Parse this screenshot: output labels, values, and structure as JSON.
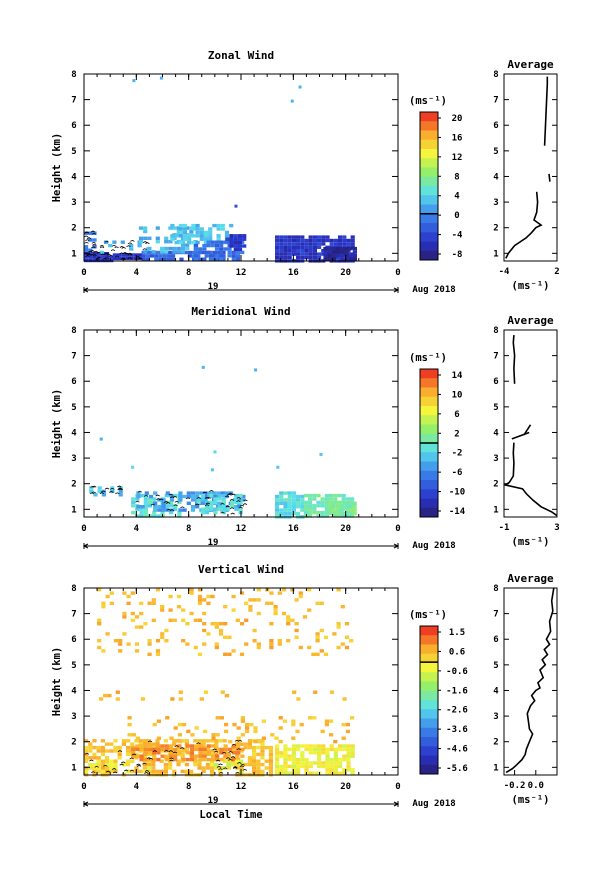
{
  "chart_data": [
    {
      "type": "heatmap",
      "title": "Zonal Wind",
      "xlabel": "",
      "ylabel": "Height (km)",
      "xlim": [
        0,
        24
      ],
      "ylim": [
        0.7,
        8
      ],
      "xticks": [
        "0",
        "4",
        "8",
        "12",
        "16",
        "20",
        "0"
      ],
      "yticks": [
        "1",
        "2",
        "3",
        "4",
        "5",
        "6",
        "7",
        "8"
      ],
      "date_bar": {
        "label": "19",
        "right_label": "Aug 2018"
      },
      "colorbar": {
        "unit": "(ms⁻¹)",
        "ticks": [
          "20",
          "16",
          "12",
          "8",
          "4",
          "0",
          "-4",
          "-8"
        ],
        "range": [
          -10,
          22
        ]
      },
      "blocks": [
        {
          "x0": 0,
          "x1": 2.2,
          "y0": 0.75,
          "y1": 1.05,
          "value": -6.5,
          "density": 0.97
        },
        {
          "x0": 2.2,
          "x1": 4.4,
          "y0": 0.75,
          "y1": 1.0,
          "value": -6.5,
          "density": 0.96
        },
        {
          "x0": 0,
          "x1": 0.8,
          "y0": 1.0,
          "y1": 1.85,
          "value": -1,
          "density": 0.55
        },
        {
          "x0": 1.2,
          "x1": 4.8,
          "y0": 1.05,
          "y1": 1.5,
          "value": 2,
          "density": 0.3
        },
        {
          "x0": 4.4,
          "x1": 10.8,
          "y0": 0.75,
          "y1": 1.1,
          "value": -2.5,
          "density": 0.85
        },
        {
          "x0": 4.2,
          "x1": 8.6,
          "y0": 1.1,
          "y1": 2.05,
          "value": 2.5,
          "density": 0.45
        },
        {
          "x0": 6.6,
          "x1": 11.2,
          "y0": 1.35,
          "y1": 2.15,
          "value": 3,
          "density": 0.55
        },
        {
          "x0": 8.4,
          "x1": 12.2,
          "y0": 0.8,
          "y1": 1.5,
          "value": -2,
          "density": 0.7
        },
        {
          "x0": 10.8,
          "x1": 12.3,
          "y0": 1.1,
          "y1": 1.75,
          "value": -6,
          "density": 0.6
        },
        {
          "x0": 14.6,
          "x1": 20.6,
          "y0": 0.75,
          "y1": 1.7,
          "value": -6,
          "density": 0.92
        },
        {
          "x0": 18.3,
          "x1": 20.6,
          "y0": 0.75,
          "y1": 1.25,
          "value": -8,
          "density": 0.95
        }
      ],
      "points": [
        {
          "x": 3.7,
          "y": 7.8,
          "value": 2
        },
        {
          "x": 5.8,
          "y": 7.9,
          "value": 2
        },
        {
          "x": 15.8,
          "y": 7.0,
          "value": 2
        },
        {
          "x": 16.4,
          "y": 7.55,
          "value": 2
        },
        {
          "x": 11.5,
          "y": 2.9,
          "value": -4
        }
      ]
    },
    {
      "type": "line",
      "title": "Average",
      "xlabel": "(ms⁻¹)",
      "xlim": [
        -4,
        2
      ],
      "ylim": [
        0.7,
        8
      ],
      "xticks": [
        "-4",
        "2"
      ],
      "yticks": [
        "1",
        "2",
        "3",
        "4",
        "5",
        "6",
        "7",
        "8"
      ],
      "profile": [
        {
          "x": -3.8,
          "y": 0.8
        },
        {
          "x": -3.5,
          "y": 1.0
        },
        {
          "x": -2.8,
          "y": 1.3
        },
        {
          "x": -1.5,
          "y": 1.6
        },
        {
          "x": -0.9,
          "y": 1.8
        },
        {
          "x": -0.4,
          "y": 2.0
        },
        {
          "x": 0.2,
          "y": 2.1
        },
        {
          "x": -0.6,
          "y": 2.3
        },
        {
          "x": -0.3,
          "y": 2.6
        },
        {
          "x": -0.2,
          "y": 3.0
        },
        {
          "x": -0.3,
          "y": 3.4
        }
      ],
      "profile_segments": [
        [
          {
            "x": 1.2,
            "y": 3.8
          },
          {
            "x": 1.1,
            "y": 4.1
          }
        ],
        [
          {
            "x": 0.6,
            "y": 5.2
          },
          {
            "x": 0.7,
            "y": 6.0
          },
          {
            "x": 0.8,
            "y": 6.8
          },
          {
            "x": 0.9,
            "y": 7.6
          },
          {
            "x": 0.9,
            "y": 7.9
          }
        ]
      ]
    },
    {
      "type": "heatmap",
      "title": "Meridional Wind",
      "xlabel": "",
      "ylabel": "Height (km)",
      "xlim": [
        0,
        24
      ],
      "ylim": [
        0.7,
        8
      ],
      "xticks": [
        "0",
        "4",
        "8",
        "12",
        "16",
        "20",
        "0"
      ],
      "yticks": [
        "1",
        "2",
        "3",
        "4",
        "5",
        "6",
        "7",
        "8"
      ],
      "date_bar": {
        "label": "19",
        "right_label": "Aug 2018"
      },
      "colorbar": {
        "unit": "(ms⁻¹)",
        "ticks": [
          "14",
          "10",
          "6",
          "2",
          "-2",
          "-6",
          "-10",
          "-14"
        ],
        "range": [
          -16,
          16
        ]
      },
      "blocks": [
        {
          "x0": 0.4,
          "x1": 3.0,
          "y0": 1.6,
          "y1": 1.9,
          "value": -3,
          "density": 0.55
        },
        {
          "x0": 3.6,
          "x1": 7.4,
          "y0": 0.75,
          "y1": 1.6,
          "value": -1,
          "density": 0.6
        },
        {
          "x0": 4.0,
          "x1": 12.2,
          "y0": 1.0,
          "y1": 1.7,
          "value": -5,
          "density": 0.5
        },
        {
          "x0": 8.6,
          "x1": 12.0,
          "y0": 0.8,
          "y1": 1.6,
          "value": -1.5,
          "density": 0.55
        },
        {
          "x0": 14.6,
          "x1": 16.8,
          "y0": 0.75,
          "y1": 1.7,
          "value": -1.5,
          "density": 0.85
        },
        {
          "x0": 16.8,
          "x1": 20.6,
          "y0": 0.75,
          "y1": 1.6,
          "value": 0.5,
          "density": 0.85
        },
        {
          "x0": 18.6,
          "x1": 20.6,
          "y0": 0.75,
          "y1": 1.3,
          "value": 1.5,
          "density": 0.9
        }
      ],
      "points": [
        {
          "x": 1.2,
          "y": 3.8,
          "value": -4
        },
        {
          "x": 3.6,
          "y": 2.7,
          "value": -2
        },
        {
          "x": 9.7,
          "y": 2.6,
          "value": -3
        },
        {
          "x": 9.9,
          "y": 3.3,
          "value": -2
        },
        {
          "x": 14.7,
          "y": 2.7,
          "value": -3
        },
        {
          "x": 18.0,
          "y": 3.2,
          "value": -3
        },
        {
          "x": 9.0,
          "y": 6.6,
          "value": -4
        },
        {
          "x": 13.0,
          "y": 6.5,
          "value": -4
        }
      ]
    },
    {
      "type": "line",
      "title": "Average",
      "xlabel": "(ms⁻¹)",
      "xlim": [
        -1,
        3
      ],
      "ylim": [
        0.7,
        8
      ],
      "xticks": [
        "-1",
        "3"
      ],
      "yticks": [
        "1",
        "2",
        "3",
        "4",
        "5",
        "6",
        "7",
        "8"
      ],
      "profile": [
        {
          "x": 3.0,
          "y": 0.75
        },
        {
          "x": 2.6,
          "y": 0.9
        },
        {
          "x": 1.8,
          "y": 1.1
        },
        {
          "x": 1.2,
          "y": 1.35
        },
        {
          "x": 0.7,
          "y": 1.6
        },
        {
          "x": 0.4,
          "y": 1.8
        },
        {
          "x": -0.9,
          "y": 1.95
        },
        {
          "x": -0.6,
          "y": 2.05
        },
        {
          "x": -0.3,
          "y": 2.3
        },
        {
          "x": -0.25,
          "y": 2.8
        },
        {
          "x": -0.3,
          "y": 3.2
        },
        {
          "x": -0.25,
          "y": 3.6
        }
      ],
      "profile_segments": [
        [
          {
            "x": -0.4,
            "y": 3.75
          },
          {
            "x": 0.9,
            "y": 4.0
          }
        ],
        [
          {
            "x": 0.5,
            "y": 3.9
          },
          {
            "x": 1.0,
            "y": 4.3
          }
        ],
        [
          {
            "x": -0.2,
            "y": 5.9
          },
          {
            "x": -0.25,
            "y": 6.5
          },
          {
            "x": -0.2,
            "y": 7.0
          },
          {
            "x": -0.3,
            "y": 7.5
          },
          {
            "x": -0.25,
            "y": 7.8
          }
        ]
      ]
    },
    {
      "type": "heatmap",
      "title": "Vertical Wind",
      "xlabel": "Local Time",
      "ylabel": "Height (km)",
      "xlim": [
        0,
        24
      ],
      "ylim": [
        0.7,
        8
      ],
      "xticks": [
        "0",
        "4",
        "8",
        "12",
        "16",
        "20",
        "0"
      ],
      "yticks": [
        "1",
        "2",
        "3",
        "4",
        "5",
        "6",
        "7",
        "8"
      ],
      "date_bar": {
        "label": "19",
        "right_label": "Aug 2018"
      },
      "colorbar": {
        "unit": "(ms⁻¹)",
        "ticks": [
          "1.5",
          "0.6",
          "-0.6",
          "-1.6",
          "-2.6",
          "-3.6",
          "-4.6",
          "-5.6"
        ],
        "range": [
          -6.2,
          2.0
        ]
      },
      "blocks": [
        {
          "x0": 0,
          "x1": 14.2,
          "y0": 0.75,
          "y1": 2.1,
          "value": 0.4,
          "density": 0.6
        },
        {
          "x0": 3.6,
          "x1": 12.0,
          "y0": 1.3,
          "y1": 1.9,
          "value": 0.9,
          "density": 0.65
        },
        {
          "x0": 0,
          "x1": 5.0,
          "y0": 0.75,
          "y1": 1.3,
          "value": -0.2,
          "density": 0.35
        },
        {
          "x0": 9.6,
          "x1": 12.2,
          "y0": 0.75,
          "y1": 1.3,
          "value": -0.6,
          "density": 0.3
        },
        {
          "x0": 14.6,
          "x1": 20.6,
          "y0": 0.75,
          "y1": 1.9,
          "value": -0.3,
          "density": 0.8
        },
        {
          "x0": 3.0,
          "x1": 20.6,
          "y0": 2.0,
          "y1": 3.0,
          "value": 0.5,
          "density": 0.15
        },
        {
          "x0": 1.0,
          "x1": 20.6,
          "y0": 5.4,
          "y1": 8.0,
          "value": 0.5,
          "density": 0.12
        },
        {
          "x0": 0.5,
          "x1": 20.0,
          "y0": 3.6,
          "y1": 4.0,
          "value": 0.5,
          "density": 0.06
        }
      ],
      "points": []
    },
    {
      "type": "line",
      "title": "Average",
      "xlabel": "(ms⁻¹)",
      "xlim": [
        -0.3,
        0.2
      ],
      "ylim": [
        0.7,
        8
      ],
      "xticks": [
        "-0.2",
        "0.0"
      ],
      "yticks": [
        "1",
        "2",
        "3",
        "4",
        "5",
        "6",
        "7",
        "8"
      ],
      "profile": [
        {
          "x": -0.28,
          "y": 0.8
        },
        {
          "x": -0.22,
          "y": 0.95
        },
        {
          "x": -0.18,
          "y": 1.1
        },
        {
          "x": -0.13,
          "y": 1.3
        },
        {
          "x": -0.1,
          "y": 1.5
        },
        {
          "x": -0.09,
          "y": 1.7
        },
        {
          "x": -0.06,
          "y": 2.0
        },
        {
          "x": -0.03,
          "y": 2.3
        },
        {
          "x": -0.06,
          "y": 2.5
        },
        {
          "x": -0.07,
          "y": 2.8
        },
        {
          "x": -0.08,
          "y": 3.1
        },
        {
          "x": -0.05,
          "y": 3.4
        },
        {
          "x": -0.01,
          "y": 3.6
        },
        {
          "x": -0.04,
          "y": 3.8
        },
        {
          "x": 0.0,
          "y": 4.0
        },
        {
          "x": 0.04,
          "y": 4.1
        },
        {
          "x": 0.02,
          "y": 4.3
        },
        {
          "x": 0.07,
          "y": 4.5
        },
        {
          "x": 0.04,
          "y": 4.8
        },
        {
          "x": 0.09,
          "y": 5.0
        },
        {
          "x": 0.06,
          "y": 5.2
        },
        {
          "x": 0.11,
          "y": 5.4
        },
        {
          "x": 0.08,
          "y": 5.6
        },
        {
          "x": 0.13,
          "y": 5.8
        },
        {
          "x": 0.1,
          "y": 6.0
        },
        {
          "x": 0.14,
          "y": 6.3
        },
        {
          "x": 0.13,
          "y": 6.7
        },
        {
          "x": 0.16,
          "y": 7.1
        },
        {
          "x": 0.15,
          "y": 7.5
        },
        {
          "x": 0.17,
          "y": 8.0
        }
      ],
      "profile_segments": []
    }
  ]
}
